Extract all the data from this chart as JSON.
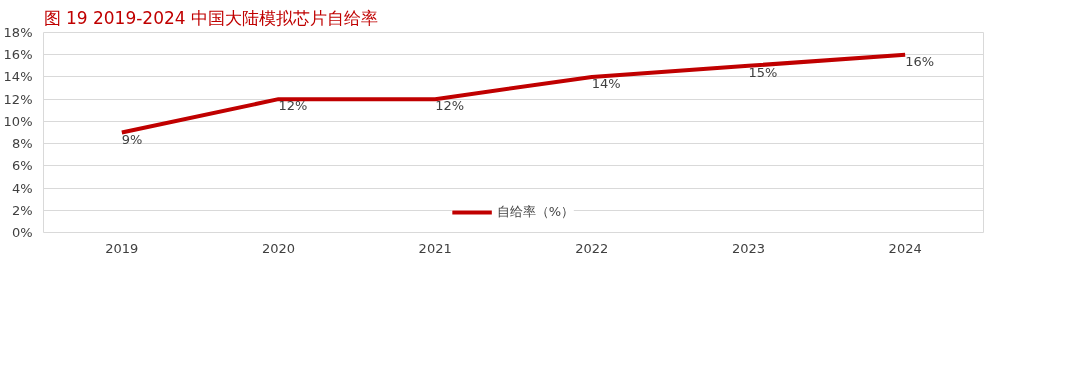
{
  "chart_data": {
    "type": "line",
    "title": "图 19   2019-2024 中国大陆模拟芯片自给率",
    "categories": [
      "2019",
      "2020",
      "2021",
      "2022",
      "2023",
      "2024"
    ],
    "series": [
      {
        "name": "自给率（%）",
        "color": "#c00000",
        "values": [
          9,
          12,
          12,
          14,
          15,
          16
        ],
        "value_labels": [
          "9%",
          "12%",
          "12%",
          "14%",
          "15%",
          "16%"
        ]
      }
    ],
    "ylim": [
      0,
      18
    ],
    "yticks": [
      {
        "value": 0,
        "label": "0%"
      },
      {
        "value": 2,
        "label": "2%"
      },
      {
        "value": 4,
        "label": "4%"
      },
      {
        "value": 6,
        "label": "6%"
      },
      {
        "value": 8,
        "label": "8%"
      },
      {
        "value": 10,
        "label": "10%"
      },
      {
        "value": 12,
        "label": "12%"
      },
      {
        "value": 14,
        "label": "14%"
      },
      {
        "value": 16,
        "label": "16%"
      },
      {
        "value": 18,
        "label": "18%"
      }
    ],
    "grid": "y",
    "legend": "bottom",
    "marker": "none",
    "line_style": "solid"
  }
}
